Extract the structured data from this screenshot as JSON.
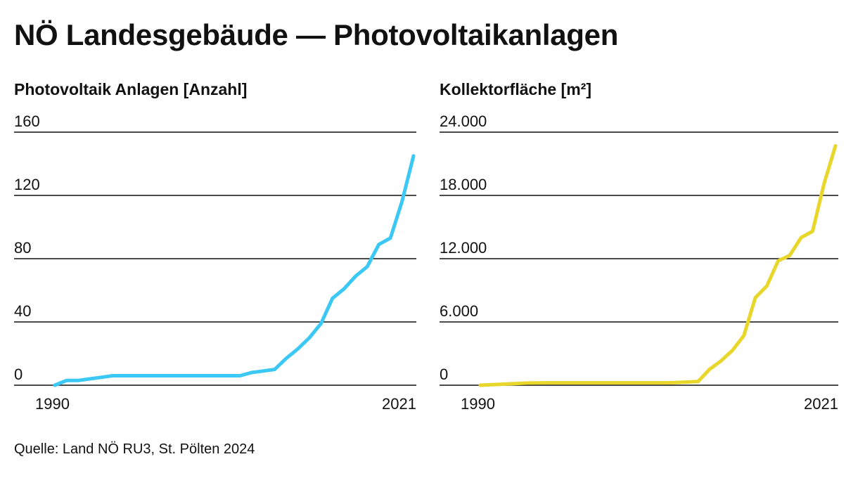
{
  "title": "NÖ Landesgebäude — Photovoltaikanlagen",
  "source": "Quelle: Land NÖ RU3, St. Pölten 2024",
  "chart_data": [
    {
      "type": "line",
      "title": "Photovoltaik Anlagen [Anzahl]",
      "color": "#3cc8f5",
      "ylim": [
        0,
        160
      ],
      "yticks": [
        0,
        40,
        80,
        120,
        160
      ],
      "ytick_labels": [
        "0",
        "40",
        "80",
        "120",
        "160"
      ],
      "xlim": [
        1990,
        2021
      ],
      "xtick_labels": [
        "1990",
        "2021"
      ],
      "grid": true,
      "series": [
        {
          "x": [
            1990,
            1991,
            1992,
            1993,
            1994,
            1995,
            1996,
            1997,
            1998,
            1999,
            2000,
            2001,
            2002,
            2003,
            2004,
            2005,
            2006,
            2007,
            2008,
            2009,
            2010,
            2011,
            2012,
            2013,
            2014,
            2015,
            2016,
            2017,
            2018,
            2019,
            2020,
            2021
          ],
          "values": [
            0,
            3,
            3,
            4,
            5,
            6,
            6,
            6,
            6,
            6,
            6,
            6,
            6,
            6,
            6,
            6,
            6,
            8,
            9,
            10,
            17,
            23,
            30,
            39,
            55,
            61,
            69,
            75,
            89,
            93,
            116,
            145
          ]
        }
      ]
    },
    {
      "type": "line",
      "title": "Kollektorfläche [m²]",
      "color": "#e8d72a",
      "ylim": [
        0,
        24000
      ],
      "yticks": [
        0,
        6000,
        12000,
        18000,
        24000
      ],
      "ytick_labels": [
        "0",
        "6.000",
        "12.000",
        "18.000",
        "24.000"
      ],
      "xlim": [
        1990,
        2021
      ],
      "xtick_labels": [
        "1990",
        "2021"
      ],
      "grid": true,
      "series": [
        {
          "x": [
            1990,
            1991,
            1992,
            1993,
            1994,
            1995,
            1996,
            1997,
            1998,
            1999,
            2000,
            2001,
            2002,
            2003,
            2004,
            2005,
            2006,
            2007,
            2008,
            2009,
            2010,
            2011,
            2012,
            2013,
            2014,
            2015,
            2016,
            2017,
            2018,
            2019,
            2020,
            2021
          ],
          "values": [
            0,
            50,
            100,
            150,
            200,
            220,
            230,
            230,
            230,
            230,
            230,
            230,
            230,
            230,
            230,
            230,
            230,
            250,
            300,
            350,
            1500,
            2300,
            3300,
            4700,
            8300,
            9400,
            11800,
            12300,
            14000,
            14600,
            19100,
            22700
          ]
        }
      ]
    }
  ]
}
